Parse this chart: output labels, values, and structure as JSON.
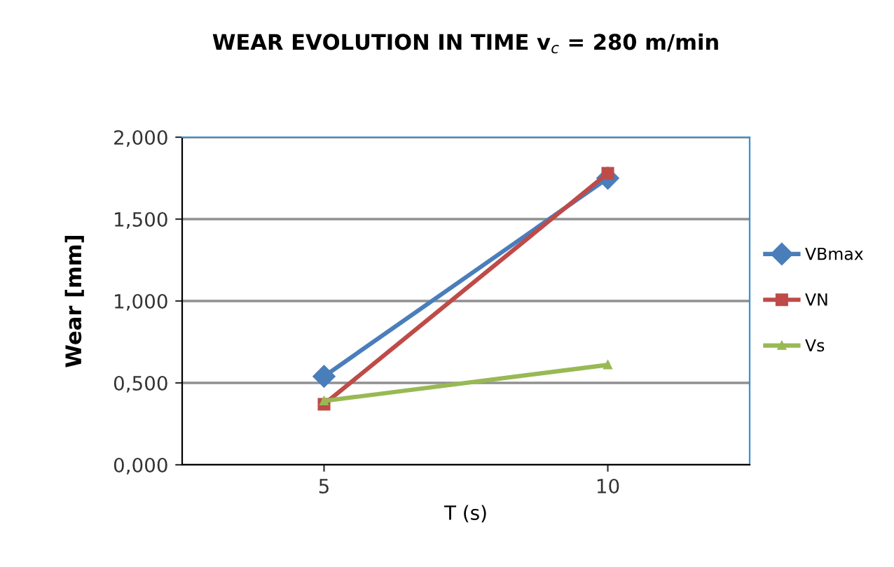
{
  "chart_data": {
    "type": "line",
    "title": "WEAR EVOLUTION IN TIME v$_{c}$ = 280 m/min",
    "xlabel": "T (s)",
    "ylabel": "Wear [mm]",
    "categories": [
      "5",
      "10"
    ],
    "series": [
      {
        "name": "VBmax",
        "color": "#4a7ebb",
        "marker": "diamond",
        "values": [
          0.54,
          1.75
        ]
      },
      {
        "name": "VN",
        "color": "#be4b48",
        "marker": "square",
        "values": [
          0.37,
          1.78
        ]
      },
      {
        "name": "Vs",
        "color": "#98b954",
        "marker": "triangle",
        "values": [
          0.39,
          0.61
        ]
      }
    ],
    "ylim": [
      0,
      2
    ],
    "yticks": [
      {
        "value": 0,
        "label": "0,000"
      },
      {
        "value": 0.5,
        "label": "0,500"
      },
      {
        "value": 1,
        "label": "1,000"
      },
      {
        "value": 1.5,
        "label": "1,500"
      },
      {
        "value": 2,
        "label": "2,000"
      }
    ],
    "grid": "y",
    "legend": "right"
  }
}
